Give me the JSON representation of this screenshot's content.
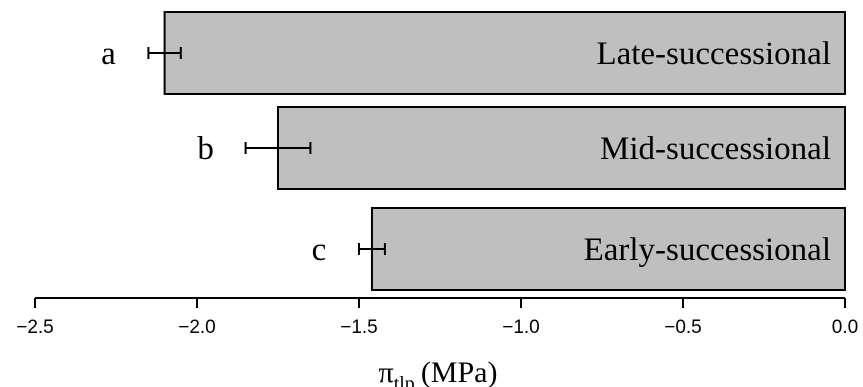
{
  "chart_data": {
    "type": "bar",
    "orientation": "horizontal",
    "categories": [
      "Late-successional",
      "Mid-successional",
      "Early-successional"
    ],
    "values": [
      -2.1,
      -1.75,
      -1.46
    ],
    "error": [
      0.05,
      0.1,
      0.04
    ],
    "significance_letters": [
      "a",
      "b",
      "c"
    ],
    "xlabel": {
      "symbol": "π",
      "subscript": "tlp",
      "unit": "(MPa)"
    },
    "xlim": [
      -2.5,
      0.0
    ],
    "xticks": [
      "−2.5",
      "−2.0",
      "−1.5",
      "−1.0",
      "−0.5",
      "0.0"
    ],
    "xtick_values": [
      -2.5,
      -2.0,
      -1.5,
      -1.0,
      -0.5,
      0.0
    ],
    "colors": {
      "bar_fill": "#bfbfbf",
      "bar_stroke": "#000000"
    },
    "grid": false
  }
}
